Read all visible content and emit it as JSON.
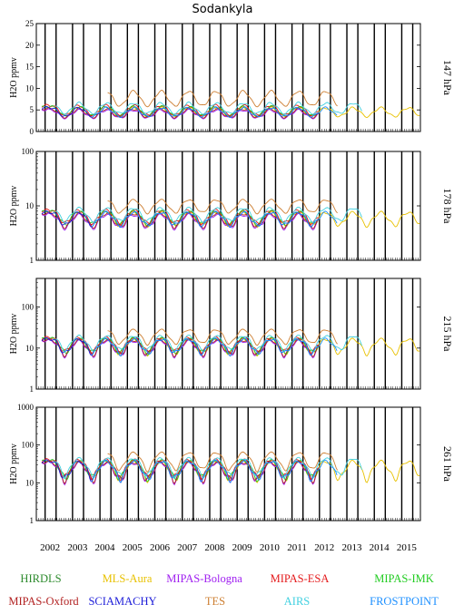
{
  "chart_data": {
    "type": "line",
    "title": "Sodankyla",
    "x_tick_labels": [
      "2002",
      "2003",
      "2004",
      "2005",
      "2006",
      "2007",
      "2008",
      "2009",
      "2010",
      "2011",
      "2012",
      "2013",
      "2014",
      "2015"
    ],
    "x_range": [
      2002.0,
      2016.0
    ],
    "panels": [
      {
        "label": "147 hPa",
        "ylabel": "H2O ppmv",
        "scale": "linear",
        "ylim": [
          0,
          25
        ],
        "yticks": [
          0,
          5,
          10,
          15,
          20,
          25
        ],
        "ytick_labels": [
          "0",
          "5",
          "10",
          "15",
          "20",
          "25"
        ],
        "base": 4.5,
        "amp": 1.0
      },
      {
        "label": "178 hPa",
        "ylabel": "H2O ppmv",
        "scale": "log",
        "ylim": [
          1,
          100
        ],
        "yticks": [
          1,
          10,
          100
        ],
        "ytick_labels": [
          "1",
          "10",
          "100"
        ],
        "base": 6.0,
        "amp": 1.6
      },
      {
        "label": "215 hPa",
        "ylabel": "H2O ppmv",
        "scale": "log",
        "ylim": [
          1,
          500
        ],
        "yticks": [
          1,
          10,
          100
        ],
        "ytick_labels": [
          "1",
          "10",
          "100"
        ],
        "base": 12.0,
        "amp": 4.5
      },
      {
        "label": "261 hPa",
        "ylabel": "H2O ppmv",
        "scale": "log",
        "ylim": [
          1,
          1000
        ],
        "yticks": [
          1,
          10,
          100,
          1000
        ],
        "ytick_labels": [
          "1",
          "10",
          "100",
          "1000"
        ],
        "base": 25.0,
        "amp": 12.0
      }
    ],
    "series": [
      {
        "name": "HIRDLS",
        "color": "#2e8b2e",
        "start": 2005.0,
        "end": 2008.0,
        "offset": 1.0
      },
      {
        "name": "MLS-Aura",
        "color": "#e8c100",
        "start": 2004.6,
        "end": 2016.0,
        "offset": 1.0
      },
      {
        "name": "MIPAS-Bologna",
        "color": "#a020f0",
        "start": 2002.2,
        "end": 2012.3,
        "offset": 0.9
      },
      {
        "name": "MIPAS-ESA",
        "color": "#e41a1c",
        "start": 2002.2,
        "end": 2012.3,
        "offset": 1.1
      },
      {
        "name": "MIPAS-IMK",
        "color": "#22cc22",
        "start": 2002.2,
        "end": 2012.3,
        "offset": 1.05
      },
      {
        "name": "MIPAS-Oxford",
        "color": "#b22222",
        "start": 2002.2,
        "end": 2012.3,
        "offset": 0.95
      },
      {
        "name": "SCIAMACHY",
        "color": "#1c1cd8",
        "start": 2002.2,
        "end": 2012.3,
        "offset": 1.0
      },
      {
        "name": "TES",
        "color": "#cd7f32",
        "start": 2004.6,
        "end": 2013.0,
        "offset": 1.7
      },
      {
        "name": "AIRS",
        "color": "#40d0e0",
        "start": 2002.7,
        "end": 2013.9,
        "offset": 1.2
      },
      {
        "name": "FROSTPOINT",
        "color": "#1e90ff",
        "start": 2004.0,
        "end": 2013.0,
        "offset": 1.0
      }
    ],
    "legend": {
      "row1": [
        "HIRDLS",
        "MLS-Aura",
        "MIPAS-Bologna",
        "MIPAS-ESA",
        "MIPAS-IMK"
      ],
      "row2": [
        "MIPAS-Oxford",
        "SCIAMACHY",
        "TES",
        "AIRS",
        "FROSTPOINT"
      ],
      "placement": "bottom"
    },
    "grid": false
  }
}
